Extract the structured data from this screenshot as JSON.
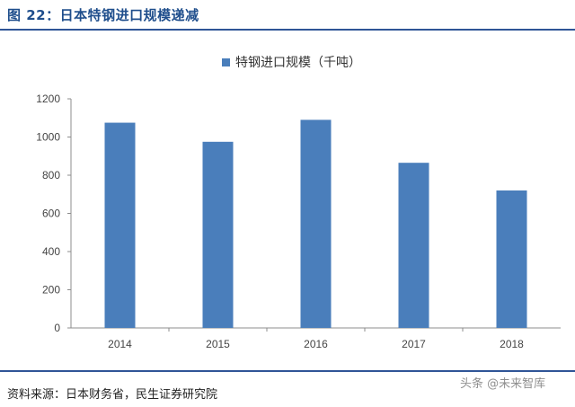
{
  "header": {
    "title": "图 22：日本特钢进口规模递减"
  },
  "source_note": "资料来源：日本财务省，民生证券研究院",
  "watermark_text": "头条 @未来智库",
  "colors": {
    "bar": "#4a7ebb",
    "title": "#1f4e8c",
    "rule": "#2f5597"
  },
  "chart_data": {
    "type": "bar",
    "title": "",
    "categories": [
      "2014",
      "2015",
      "2016",
      "2017",
      "2018"
    ],
    "series": [
      {
        "name": "特钢进口规模（千吨）",
        "values": [
          1075,
          975,
          1090,
          865,
          720
        ]
      }
    ],
    "ylim": [
      0,
      1200
    ],
    "yticks": [
      0,
      200,
      400,
      600,
      800,
      1000,
      1200
    ],
    "legend_position": "top-center",
    "grid": false,
    "xlabel": "",
    "ylabel": ""
  }
}
